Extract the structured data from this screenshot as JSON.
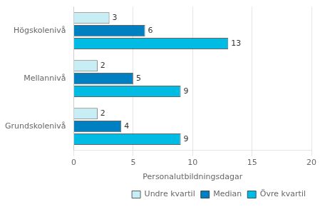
{
  "chart_data": {
    "type": "bar",
    "orientation": "horizontal",
    "categories": [
      "Högskolenivå",
      "Mellannivå",
      "Grundskolenivå"
    ],
    "series": [
      {
        "name": "Undre kvartil",
        "color": "#c8eef5",
        "values": [
          3,
          2,
          2
        ]
      },
      {
        "name": "Median",
        "color": "#0080c0",
        "values": [
          6,
          5,
          4
        ]
      },
      {
        "name": "Övre kvartil",
        "color": "#00bce4",
        "values": [
          13,
          9,
          9
        ]
      }
    ],
    "xlabel": "Personalutbildningsdagar",
    "xlim": [
      0,
      20
    ],
    "xticks": [
      0,
      5,
      10,
      15,
      20
    ],
    "grid": true,
    "legend": "lower right",
    "data_labels": true
  }
}
